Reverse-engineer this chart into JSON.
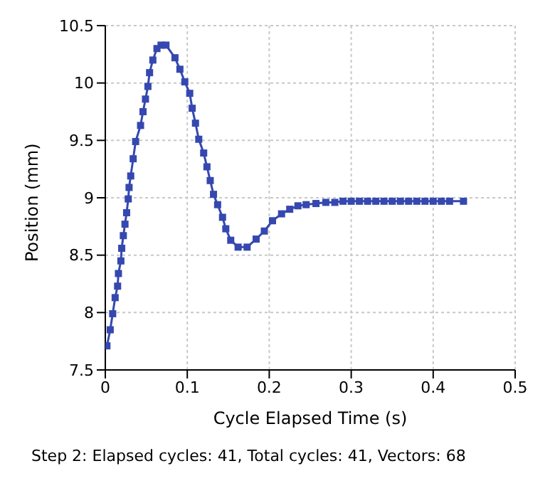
{
  "chart_data": {
    "type": "line",
    "xlabel": "Cycle Elapsed Time (s)",
    "ylabel": "Position (mm)",
    "annotations": [
      "Step 2: Elapsed cycles: 41, Total cycles: 41, Vectors: 68"
    ],
    "xlim": [
      0,
      0.5
    ],
    "xticks": [
      0,
      0.1,
      0.2,
      0.3,
      0.4,
      0.5
    ],
    "ylim": [
      7.5,
      10.5
    ],
    "yticks": [
      7.5,
      8,
      8.5,
      9,
      9.5,
      10,
      10.5
    ],
    "grid": true,
    "marker": "square",
    "line_style": "solid",
    "series": [
      {
        "color": "#3548b0",
        "x": [
          0.002,
          0.006,
          0.009,
          0.012,
          0.015,
          0.016,
          0.019,
          0.02,
          0.022,
          0.024,
          0.026,
          0.028,
          0.029,
          0.031,
          0.034,
          0.037,
          0.043,
          0.046,
          0.049,
          0.052,
          0.054,
          0.058,
          0.063,
          0.068,
          0.074,
          0.085,
          0.091,
          0.097,
          0.103,
          0.106,
          0.11,
          0.114,
          0.12,
          0.124,
          0.128,
          0.132,
          0.137,
          0.143,
          0.147,
          0.153,
          0.162,
          0.173,
          0.184,
          0.194,
          0.204,
          0.215,
          0.225,
          0.235,
          0.245,
          0.257,
          0.269,
          0.28,
          0.29,
          0.3,
          0.31,
          0.32,
          0.33,
          0.34,
          0.35,
          0.36,
          0.37,
          0.38,
          0.39,
          0.4,
          0.41,
          0.42,
          0.437
        ],
        "values": [
          7.71,
          7.85,
          7.99,
          8.13,
          8.23,
          8.34,
          8.45,
          8.56,
          8.67,
          8.77,
          8.87,
          8.99,
          9.09,
          9.19,
          9.34,
          9.49,
          9.63,
          9.75,
          9.86,
          9.97,
          10.09,
          10.2,
          10.3,
          10.33,
          10.33,
          10.22,
          10.12,
          10.01,
          9.91,
          9.78,
          9.65,
          9.51,
          9.39,
          9.27,
          9.15,
          9.03,
          8.94,
          8.83,
          8.73,
          8.63,
          8.57,
          8.57,
          8.64,
          8.71,
          8.8,
          8.86,
          8.9,
          8.93,
          8.94,
          8.95,
          8.96,
          8.96,
          8.97,
          8.97,
          8.97,
          8.97,
          8.97,
          8.97,
          8.97,
          8.97,
          8.97,
          8.97,
          8.97,
          8.97,
          8.97,
          8.97,
          8.97
        ]
      }
    ]
  }
}
